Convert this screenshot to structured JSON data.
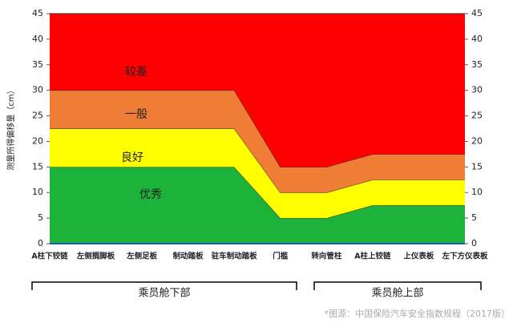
{
  "chart_data": {
    "type": "stacked_area",
    "y_label": "测量所得偏移量（cm）",
    "categories": [
      "A柱下铰链",
      "左侧搁脚板",
      "左侧足板",
      "制动踏板",
      "驻车制动踏板",
      "门槛",
      "转向管柱",
      "A柱上铰链",
      "上仪表板",
      "左下方仪表板"
    ],
    "series": [
      {
        "name": "优秀",
        "color": "#1db33b",
        "values": [
          15,
          15,
          15,
          15,
          15,
          5,
          5,
          7.5,
          7.5,
          7.5
        ]
      },
      {
        "name": "良好",
        "color": "#ffff00",
        "values": [
          7.5,
          7.5,
          7.5,
          7.5,
          7.5,
          5,
          5,
          5,
          5,
          5
        ]
      },
      {
        "name": "一般",
        "color": "#f07d35",
        "values": [
          7.5,
          7.5,
          7.5,
          7.5,
          7.5,
          5,
          5,
          5,
          5,
          5
        ]
      },
      {
        "name": "较差",
        "color": "#ff0000",
        "values": [
          15,
          15,
          15,
          15,
          15,
          30,
          30,
          27.5,
          27.5,
          27.5
        ]
      }
    ],
    "ylim": [
      0,
      45
    ],
    "yticks": [
      0,
      5,
      10,
      15,
      20,
      25,
      30,
      35,
      40,
      45
    ],
    "y2lim": [
      0,
      45
    ],
    "y2ticks": [
      0,
      5,
      10,
      15,
      20,
      25,
      30,
      35,
      40,
      45
    ],
    "groups": [
      "乘员舱下部",
      "乘员舱上部"
    ],
    "source": "*图源：中国保险汽车安全指数规程（2017版）"
  }
}
